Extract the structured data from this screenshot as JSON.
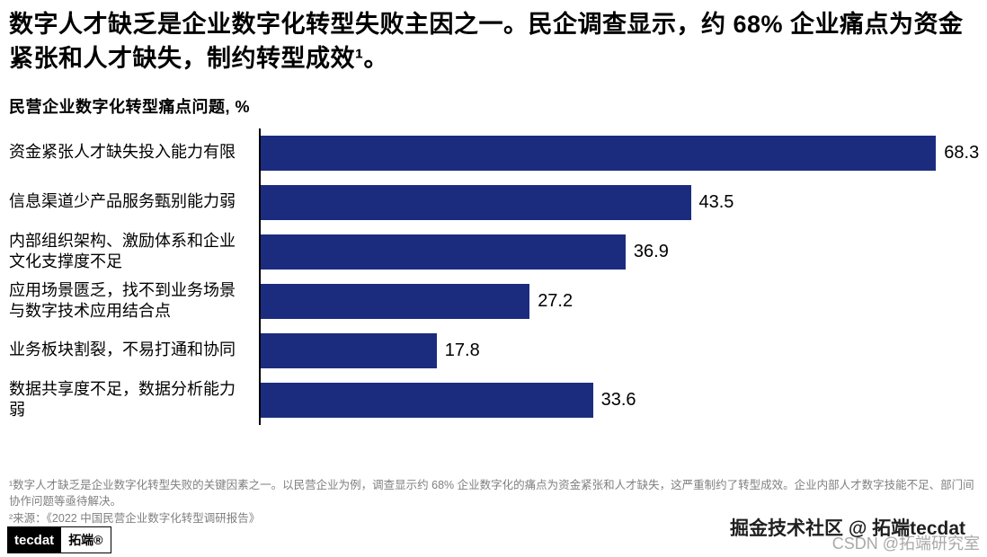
{
  "header": {
    "title": "数字人才缺乏是企业数字化转型失败主因之一。民企调查显示，约 68% 企业痛点为资金紧张和人才缺失，制约转型成效¹。"
  },
  "chart_data": {
    "type": "bar",
    "orientation": "horizontal",
    "title": "民营企业数字化转型痛点问题, %",
    "categories": [
      "资金紧张人才缺失投入能力有限",
      "信息渠道少产品服务甄别能力弱",
      "内部组织架构、激励体系和企业文化支撑度不足",
      "应用场景匮乏，找不到业务场景与数字技术应用结合点",
      "业务板块割裂，不易打通和协同",
      "数据共享度不足，数据分析能力弱"
    ],
    "values": [
      68.3,
      43.5,
      36.9,
      27.2,
      17.8,
      33.6
    ],
    "value_labels": [
      "68.3",
      "43.5",
      "36.9",
      "27.2",
      "17.8",
      "33.6"
    ],
    "xlim": [
      0,
      70
    ],
    "bar_color": "#1b2c7f",
    "grid": false,
    "legend": "none"
  },
  "footnotes": [
    "¹数字人才缺乏是企业数字化转型失败的关键因素之一。以民营企业为例，调查显示约 68% 企业数字化的痛点为资金紧张和人才缺失，这严重制约了转型成效。企业内部人才数字技能不足、部门间协作问题等亟待解决。",
    "²来源：《2022 中国民营企业数字化转型调研报告》"
  ],
  "footer": {
    "logo_text": "tecdat",
    "logo_cn": "拓端®"
  },
  "watermarks": {
    "community": "掘金技术社区 @ 拓端tecdat",
    "csdn": "CSDN @拓端研究室"
  }
}
